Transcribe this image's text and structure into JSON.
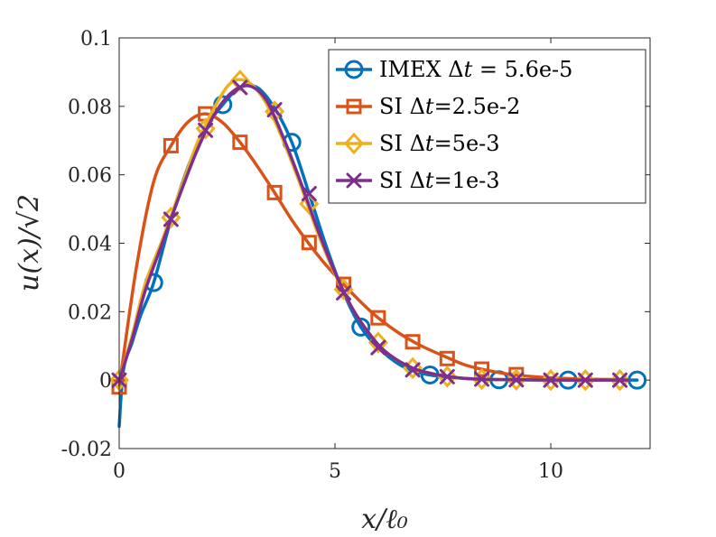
{
  "chart_data": {
    "type": "line",
    "xlabel": "x/ℓ₀",
    "ylabel": "u(x)/√2",
    "xlim": [
      0,
      12.3
    ],
    "ylim": [
      -0.02,
      0.1
    ],
    "xticks": [
      0,
      5,
      10
    ],
    "xtick_labels": [
      "0",
      "5",
      "10"
    ],
    "yticks": [
      -0.02,
      0,
      0.02,
      0.04,
      0.06,
      0.08,
      0.1
    ],
    "ytick_labels": [
      "-0.02",
      "0",
      "0.02",
      "0.04",
      "0.06",
      "0.08",
      "0.1"
    ],
    "legend_position": "top-right",
    "series": [
      {
        "name": "IMEX Δt = 5.6e-5",
        "label_parts": [
          "IMEX ",
          "Δ",
          "t",
          " = 5.6e-5"
        ],
        "color": "#0072BD",
        "marker": "circle",
        "x": [
          0,
          0.1,
          0.3,
          0.5,
          0.8,
          1.2,
          1.6,
          2.0,
          2.4,
          2.8,
          3.2,
          3.6,
          4.0,
          4.4,
          4.8,
          5.2,
          5.6,
          6.0,
          6.5,
          7.0,
          7.5,
          8.0,
          8.5,
          9.0,
          10.0,
          11.0,
          12.0
        ],
        "y": [
          -0.0135,
          0.003,
          0.011,
          0.019,
          0.0285,
          0.047,
          0.0625,
          0.0735,
          0.0805,
          0.0855,
          0.0855,
          0.0795,
          0.0695,
          0.0545,
          0.039,
          0.0255,
          0.0155,
          0.0095,
          0.0045,
          0.002,
          0.001,
          0.0005,
          0.0002,
          0.0001,
          0.0,
          0.0,
          0.0
        ],
        "marker_x": [
          0.8,
          2.4,
          4.0,
          5.6,
          7.2,
          8.8,
          10.4,
          12.0
        ],
        "marker_y": [
          0.0285,
          0.0805,
          0.0695,
          0.0155,
          0.0015,
          0.0001,
          0.0,
          0.0
        ]
      },
      {
        "name": "SI Δt=2.5e-2",
        "label_parts": [
          "SI ",
          "Δ",
          "t",
          "=2.5e-2"
        ],
        "color": "#D95319",
        "marker": "square",
        "x": [
          0,
          0.4,
          0.8,
          1.2,
          1.6,
          2.0,
          2.4,
          2.8,
          3.2,
          3.6,
          4.0,
          4.4,
          4.8,
          5.2,
          5.6,
          6.0,
          6.5,
          7.0,
          7.6,
          8.0,
          8.4,
          9.0,
          9.6,
          10.5,
          11.2,
          11.8
        ],
        "y": [
          -0.002,
          0.033,
          0.058,
          0.0685,
          0.0755,
          0.0778,
          0.0752,
          0.0695,
          0.0625,
          0.0548,
          0.0468,
          0.0398,
          0.0335,
          0.028,
          0.0228,
          0.0182,
          0.0136,
          0.01,
          0.0066,
          0.0045,
          0.0032,
          0.0018,
          0.001,
          0.0004,
          0.0002,
          0.0001
        ],
        "marker_x": [
          0,
          1.2,
          2.0,
          2.8,
          3.6,
          4.4,
          5.2,
          6.0,
          6.8,
          7.6,
          8.4,
          9.2
        ],
        "marker_y": [
          -0.002,
          0.0685,
          0.0778,
          0.0695,
          0.0548,
          0.0402,
          0.028,
          0.0182,
          0.0112,
          0.0063,
          0.0032,
          0.0016
        ]
      },
      {
        "name": "SI Δt=5e-3",
        "label_parts": [
          "SI ",
          "Δ",
          "t",
          "=5e-3"
        ],
        "color": "#EDB120",
        "marker": "diamond",
        "x": [
          0,
          0.3,
          0.6,
          1.0,
          1.4,
          1.8,
          2.2,
          2.6,
          3.0,
          3.4,
          3.8,
          4.2,
          4.6,
          5.0,
          5.4,
          5.8,
          6.2,
          6.8,
          7.4,
          8.0,
          8.6,
          9.4,
          10.2,
          11.0,
          11.8
        ],
        "y": [
          0.0,
          0.013,
          0.028,
          0.041,
          0.055,
          0.069,
          0.0795,
          0.087,
          0.087,
          0.081,
          0.07,
          0.057,
          0.043,
          0.031,
          0.021,
          0.0135,
          0.008,
          0.0035,
          0.0015,
          0.0005,
          0.0002,
          0.0001,
          0.0,
          0.0,
          0.0
        ],
        "marker_x": [
          0,
          1.2,
          2.0,
          2.8,
          3.6,
          4.4,
          5.2,
          6.0,
          6.8,
          7.6,
          8.4,
          9.2,
          10.0,
          10.8,
          11.6
        ],
        "marker_y": [
          0.0,
          0.0475,
          0.0735,
          0.0875,
          0.0785,
          0.0515,
          0.0265,
          0.011,
          0.0035,
          0.001,
          0.0003,
          0.0001,
          0.0,
          0.0,
          0.0
        ]
      },
      {
        "name": "SI Δt=1e-3",
        "label_parts": [
          "SI ",
          "Δ",
          "t",
          "=1e-3"
        ],
        "color": "#7E2F8E",
        "marker": "x",
        "x": [
          0,
          0.3,
          0.6,
          1.0,
          1.4,
          1.8,
          2.2,
          2.6,
          3.0,
          3.4,
          3.8,
          4.2,
          4.6,
          5.0,
          5.4,
          5.8,
          6.2,
          6.8,
          7.4,
          8.0,
          8.6,
          9.4,
          10.2,
          11.0,
          11.8
        ],
        "y": [
          0.0,
          0.012,
          0.026,
          0.04,
          0.054,
          0.067,
          0.0775,
          0.084,
          0.086,
          0.082,
          0.071,
          0.058,
          0.044,
          0.0315,
          0.021,
          0.0135,
          0.008,
          0.0035,
          0.0015,
          0.0005,
          0.0002,
          0.0001,
          0.0,
          0.0,
          0.0
        ],
        "marker_x": [
          0,
          1.2,
          2.0,
          2.8,
          3.6,
          4.4,
          5.2,
          6.0,
          6.8,
          7.6,
          8.4,
          9.2,
          10.0,
          10.8,
          11.6
        ],
        "marker_y": [
          0.0,
          0.047,
          0.073,
          0.0855,
          0.079,
          0.0545,
          0.0255,
          0.0095,
          0.003,
          0.001,
          0.0003,
          0.0001,
          0.0,
          0.0,
          0.0
        ]
      }
    ]
  }
}
